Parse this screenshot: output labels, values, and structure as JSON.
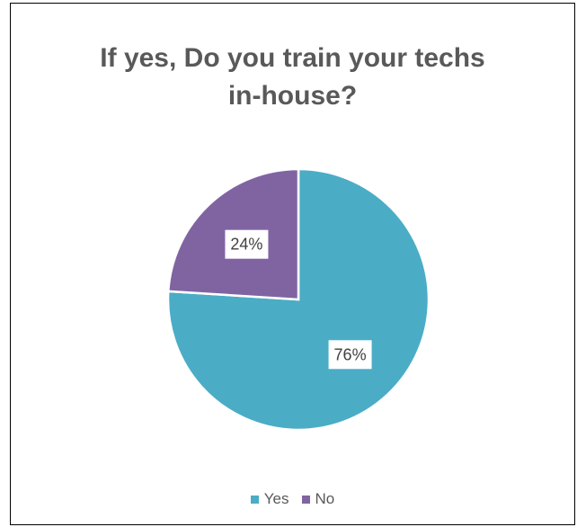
{
  "chart_data": {
    "type": "pie",
    "title_lines": [
      "If yes, Do you train your techs",
      "in-house?"
    ],
    "slices": [
      {
        "label": "Yes",
        "value": 76,
        "display": "76%",
        "color": "#4bacc6"
      },
      {
        "label": "No",
        "value": 24,
        "display": "24%",
        "color": "#8064a2"
      }
    ],
    "legend": {
      "position": "bottom",
      "entries": [
        "Yes",
        "No"
      ]
    }
  }
}
